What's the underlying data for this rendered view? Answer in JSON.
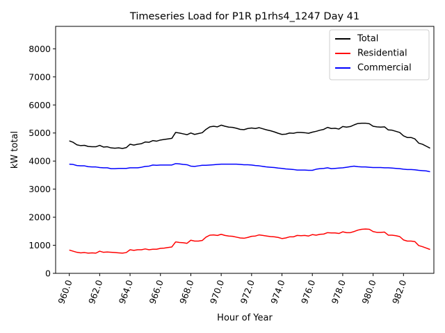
{
  "chart_data": {
    "type": "line",
    "title": "Timeseries Load for P1R p1rhs4_1247  Day 41",
    "xlabel": "Hour of Year",
    "ylabel": "kW total",
    "xlim": [
      959.1,
      984.0
    ],
    "ylim": [
      0,
      8800
    ],
    "x_ticks": [
      960,
      962,
      964,
      966,
      968,
      970,
      972,
      974,
      976,
      978,
      980,
      982
    ],
    "x_tick_labels": [
      "960.0",
      "962.0",
      "964.0",
      "966.0",
      "968.0",
      "970.0",
      "972.0",
      "974.0",
      "976.0",
      "978.0",
      "980.0",
      "982.0"
    ],
    "y_ticks": [
      0,
      1000,
      2000,
      3000,
      4000,
      5000,
      6000,
      7000,
      8000
    ],
    "y_tick_labels": [
      "0",
      "1000",
      "2000",
      "3000",
      "4000",
      "5000",
      "6000",
      "7000",
      "8000"
    ],
    "grid": false,
    "legend_position": "top-right",
    "x": [
      960.0,
      960.25,
      960.5,
      960.75,
      961.0,
      961.25,
      961.5,
      961.75,
      962.0,
      962.25,
      962.5,
      962.75,
      963.0,
      963.25,
      963.5,
      963.75,
      964.0,
      964.25,
      964.5,
      964.75,
      965.0,
      965.25,
      965.5,
      965.75,
      966.0,
      966.25,
      966.5,
      966.75,
      967.0,
      967.25,
      967.5,
      967.75,
      968.0,
      968.25,
      968.5,
      968.75,
      969.0,
      969.25,
      969.5,
      969.75,
      970.0,
      970.25,
      970.5,
      970.75,
      971.0,
      971.25,
      971.5,
      971.75,
      972.0,
      972.25,
      972.5,
      972.75,
      973.0,
      973.25,
      973.5,
      973.75,
      974.0,
      974.25,
      974.5,
      974.75,
      975.0,
      975.25,
      975.5,
      975.75,
      976.0,
      976.25,
      976.5,
      976.75,
      977.0,
      977.25,
      977.5,
      977.75,
      978.0,
      978.25,
      978.5,
      978.75,
      979.0,
      979.25,
      979.5,
      979.75,
      980.0,
      980.25,
      980.5,
      980.75,
      981.0,
      981.25,
      981.5,
      981.75,
      982.0,
      982.25,
      982.5,
      982.75,
      983.0,
      983.25,
      983.5,
      983.75
    ],
    "series": [
      {
        "name": "Total",
        "color": "#000000",
        "values": [
          4720,
          4670,
          4580,
          4550,
          4560,
          4520,
          4510,
          4510,
          4560,
          4500,
          4510,
          4470,
          4460,
          4470,
          4450,
          4480,
          4600,
          4570,
          4600,
          4620,
          4680,
          4670,
          4730,
          4710,
          4750,
          4770,
          4790,
          4810,
          5020,
          5000,
          4970,
          4940,
          5000,
          4950,
          4980,
          5010,
          5130,
          5220,
          5240,
          5220,
          5280,
          5240,
          5210,
          5200,
          5170,
          5130,
          5120,
          5160,
          5180,
          5160,
          5190,
          5150,
          5110,
          5080,
          5040,
          4990,
          4950,
          4960,
          5000,
          4990,
          5020,
          5020,
          5010,
          4990,
          5030,
          5060,
          5100,
          5130,
          5200,
          5160,
          5170,
          5140,
          5230,
          5210,
          5230,
          5290,
          5340,
          5350,
          5350,
          5330,
          5240,
          5220,
          5210,
          5220,
          5110,
          5100,
          5060,
          5020,
          4900,
          4840,
          4840,
          4790,
          4640,
          4600,
          4530,
          4460
        ]
      },
      {
        "name": "Residential",
        "color": "#ff0000",
        "values": [
          830,
          790,
          750,
          730,
          740,
          720,
          730,
          720,
          790,
          750,
          760,
          750,
          740,
          730,
          720,
          740,
          840,
          820,
          840,
          840,
          870,
          840,
          860,
          860,
          890,
          900,
          920,
          940,
          1120,
          1100,
          1090,
          1070,
          1180,
          1150,
          1150,
          1170,
          1290,
          1360,
          1370,
          1350,
          1390,
          1350,
          1330,
          1320,
          1290,
          1260,
          1250,
          1280,
          1320,
          1330,
          1370,
          1350,
          1330,
          1310,
          1300,
          1280,
          1240,
          1260,
          1300,
          1300,
          1350,
          1340,
          1350,
          1330,
          1380,
          1360,
          1390,
          1400,
          1450,
          1440,
          1440,
          1420,
          1480,
          1450,
          1450,
          1490,
          1540,
          1570,
          1580,
          1570,
          1490,
          1460,
          1460,
          1470,
          1360,
          1360,
          1340,
          1310,
          1190,
          1150,
          1150,
          1130,
          990,
          950,
          900,
          850
        ]
      },
      {
        "name": "Commercial",
        "color": "#0000ff",
        "values": [
          3890,
          3880,
          3840,
          3830,
          3830,
          3800,
          3790,
          3790,
          3770,
          3760,
          3760,
          3730,
          3730,
          3740,
          3740,
          3740,
          3760,
          3760,
          3760,
          3780,
          3810,
          3820,
          3860,
          3850,
          3860,
          3860,
          3860,
          3860,
          3910,
          3900,
          3880,
          3870,
          3820,
          3810,
          3830,
          3850,
          3850,
          3860,
          3870,
          3880,
          3890,
          3890,
          3890,
          3890,
          3890,
          3880,
          3870,
          3870,
          3860,
          3840,
          3830,
          3810,
          3790,
          3780,
          3770,
          3750,
          3740,
          3720,
          3710,
          3700,
          3680,
          3680,
          3680,
          3670,
          3670,
          3710,
          3730,
          3740,
          3760,
          3730,
          3740,
          3750,
          3760,
          3780,
          3800,
          3820,
          3800,
          3790,
          3790,
          3780,
          3770,
          3770,
          3770,
          3760,
          3760,
          3750,
          3740,
          3730,
          3710,
          3700,
          3700,
          3690,
          3670,
          3660,
          3650,
          3620
        ]
      }
    ]
  }
}
